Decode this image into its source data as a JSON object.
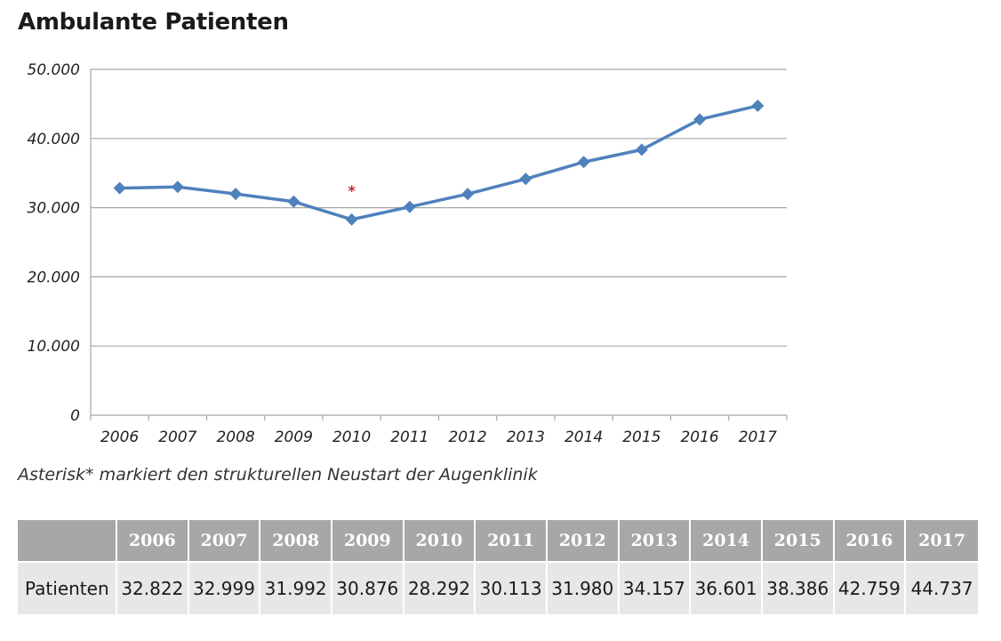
{
  "chart_data": {
    "type": "line",
    "title": "Ambulante Patienten",
    "xlabel": "",
    "ylabel": "",
    "categories": [
      "2006",
      "2007",
      "2008",
      "2009",
      "2010",
      "2011",
      "2012",
      "2013",
      "2014",
      "2015",
      "2016",
      "2017"
    ],
    "series": [
      {
        "name": "Patienten",
        "values": [
          32822,
          32999,
          31992,
          30876,
          28292,
          30113,
          31980,
          34157,
          36601,
          38386,
          42759,
          44737
        ],
        "color": "#4f81bd"
      }
    ],
    "ylim": [
      0,
      50000
    ],
    "yticks": [
      0,
      10000,
      20000,
      30000,
      40000,
      50000
    ],
    "ytick_labels": [
      "0",
      "10.000",
      "20.000",
      "30.000",
      "40.000",
      "50.000"
    ],
    "grid": true,
    "annotations": [
      {
        "text": "*",
        "category": "2010",
        "y": 32500,
        "color": "#c0262d"
      }
    ]
  },
  "note": "Asterisk* markiert den strukturellen Neustart der Augenklinik",
  "table": {
    "header": [
      "",
      "2006",
      "2007",
      "2008",
      "2009",
      "2010",
      "2011",
      "2012",
      "2013",
      "2014",
      "2015",
      "2016",
      "2017"
    ],
    "rows": [
      [
        "Patienten",
        "32.822",
        "32.999",
        "31.992",
        "30.876",
        "28.292",
        "30.113",
        "31.980",
        "34.157",
        "36.601",
        "38.386",
        "42.759",
        "44.737"
      ]
    ],
    "header_color": "#a7a7a7",
    "row_color": "#e7e7e7"
  }
}
